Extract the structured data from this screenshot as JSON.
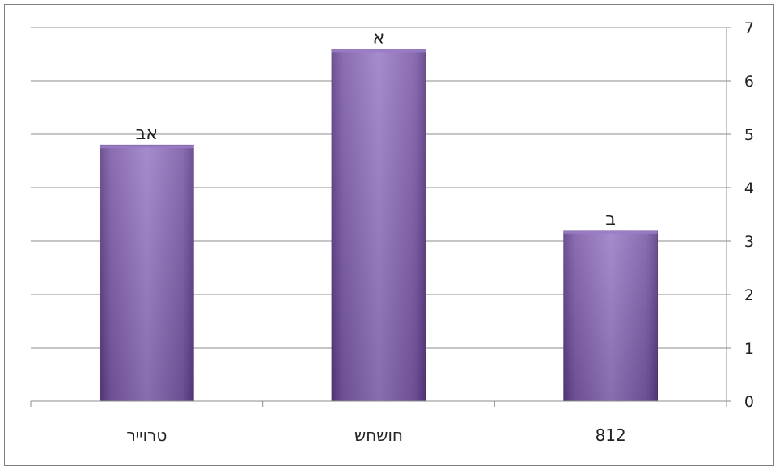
{
  "chart_data": {
    "type": "bar",
    "categories": [
      "טרוייר",
      "חושחש",
      "812"
    ],
    "values": [
      4.8,
      6.6,
      3.2
    ],
    "data_labels": [
      "אב",
      "א",
      "ב"
    ],
    "title": "",
    "xlabel": "",
    "ylabel": "",
    "ylim": [
      0,
      7
    ],
    "yticks": [
      "0",
      "1",
      "2",
      "3",
      "4",
      "5",
      "6",
      "7"
    ],
    "y_axis_side": "right",
    "grid": true,
    "legend": "none",
    "bar_color": "#7b5aa6",
    "bar_color_dark": "#5a3c85",
    "bar_color_light": "#9a7cc6"
  }
}
